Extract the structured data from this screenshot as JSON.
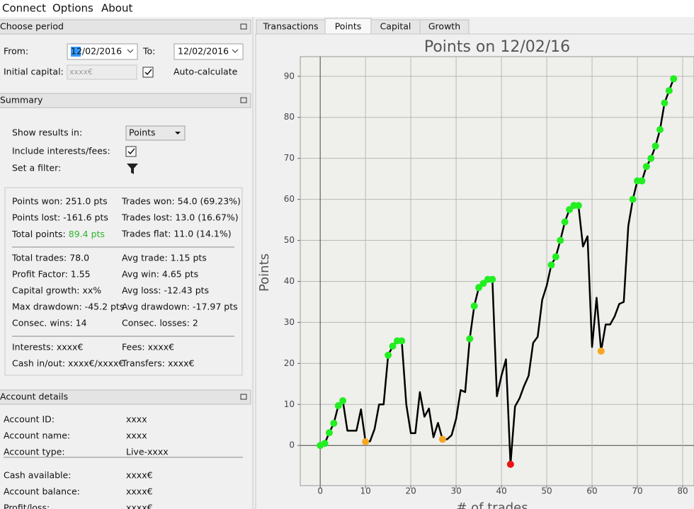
{
  "menu": [
    "Connect",
    "Options",
    "About"
  ],
  "period": {
    "title": "Choose period",
    "from_label": "From:",
    "from": "12/02/2016",
    "to_label": "To:",
    "to": "12/02/2016",
    "capital_label": "Initial capital:",
    "capital": "xxxx€",
    "auto_label": "Auto-calculate"
  },
  "summary": {
    "title": "Summary",
    "show_label": "Show results in:",
    "show_value": "Points",
    "interests_label": "Include interests/fees:",
    "filter_label": "Set a filter:",
    "stats": [
      [
        [
          "Points won: 251.0 pts",
          "Trades won: 54.0 (69.23%)"
        ],
        [
          "Points lost: -161.6 pts",
          "Trades lost: 13.0 (16.67%)"
        ],
        [
          {
            "label": "Total points:",
            "value": "89.4 pts"
          },
          "Trades flat: 11.0 (14.1%)"
        ]
      ],
      [
        [
          "Total trades: 78.0",
          "Avg trade: 1.15 pts"
        ],
        [
          "Profit Factor: 1.55",
          "Avg win: 4.65 pts"
        ],
        [
          "Capital growth: xx%",
          "Avg loss: -12.43 pts"
        ],
        [
          "Max drawdown: -45.2 pts",
          "Avg drawdown: -17.97 pts"
        ],
        [
          "Consec. wins: 14",
          "Consec. losses: 2"
        ]
      ],
      [
        [
          "Interests: xxxx€",
          "Fees: xxxx€"
        ],
        [
          "Cash in/out: xxxx€/xxxx€",
          "Transfers: xxxx€"
        ]
      ]
    ]
  },
  "account": {
    "title": "Account details",
    "groups": [
      [
        [
          "Account ID:",
          "xxxx"
        ],
        [
          "Account name:",
          "xxxx"
        ],
        [
          "Account type:",
          "Live-xxxx"
        ]
      ],
      [
        [
          "Cash available:",
          "xxxx€"
        ],
        [
          "Account balance:",
          "xxxx€"
        ],
        [
          "Profit/loss:",
          "xxxx€"
        ]
      ]
    ]
  },
  "tabs": [
    "Transactions",
    "Points",
    "Capital",
    "Growth"
  ],
  "active_tab": "Points",
  "chart_data": {
    "type": "line",
    "title": "Points on 12/02/16",
    "ylabel": "Points",
    "xlabel": "# of trades",
    "x": [
      0,
      1,
      2,
      3,
      4,
      5,
      6,
      7,
      8,
      9,
      10,
      11,
      12,
      13,
      14,
      15,
      16,
      17,
      18,
      19,
      20,
      21,
      22,
      23,
      24,
      25,
      26,
      27,
      28,
      29,
      30,
      31,
      32,
      33,
      34,
      35,
      36,
      37,
      38,
      39,
      40,
      41,
      42,
      43,
      44,
      45,
      46,
      47,
      48,
      49,
      50,
      51,
      52,
      53,
      54,
      55,
      56,
      57,
      58,
      59,
      60,
      61,
      62,
      63,
      64,
      65,
      66,
      67,
      68,
      69,
      70,
      71,
      72,
      73,
      74,
      75,
      76,
      77,
      78
    ],
    "values": [
      0,
      0.5,
      3.1,
      5.4,
      9.7,
      10.9,
      3.6,
      3.6,
      3.6,
      8.8,
      0.9,
      1,
      4,
      10,
      10,
      22,
      24.2,
      25.5,
      25.5,
      10,
      3,
      3,
      13,
      7,
      9,
      2,
      5.5,
      1.5,
      1.5,
      2.5,
      6.5,
      13.5,
      13,
      26,
      34,
      38.5,
      39.5,
      40.5,
      40.5,
      12,
      17,
      21,
      -4.6,
      9.5,
      11.5,
      14.5,
      17,
      25,
      26.5,
      35.5,
      39,
      44,
      46,
      50,
      54.5,
      57.5,
      58.5,
      58.5,
      48.5,
      51,
      24,
      36,
      23,
      29.5,
      29.5,
      31.5,
      34.5,
      35,
      53.5,
      60,
      64.5,
      64.5,
      68,
      70,
      73,
      77,
      83.5,
      86.5,
      89.4
    ],
    "color": "#000000",
    "marker_colors": [
      "#22ee22",
      "#22ee22",
      "#22ee22",
      "#22ee22",
      "#22ee22",
      "#22ee22",
      null,
      null,
      null,
      null,
      "#f5a623",
      null,
      null,
      null,
      null,
      "#22ee22",
      "#22ee22",
      "#22ee22",
      "#22ee22",
      null,
      null,
      null,
      null,
      null,
      null,
      null,
      null,
      "#f5a623",
      null,
      null,
      null,
      null,
      null,
      "#22ee22",
      "#22ee22",
      "#22ee22",
      "#22ee22",
      "#22ee22",
      "#22ee22",
      null,
      null,
      null,
      "#ee1111",
      null,
      null,
      null,
      null,
      null,
      null,
      null,
      null,
      "#22ee22",
      "#22ee22",
      "#22ee22",
      "#22ee22",
      "#22ee22",
      "#22ee22",
      "#22ee22",
      null,
      null,
      null,
      null,
      "#f5a623",
      null,
      null,
      null,
      null,
      null,
      null,
      "#22ee22",
      "#22ee22",
      "#22ee22",
      "#22ee22",
      "#22ee22",
      "#22ee22",
      "#22ee22",
      "#22ee22",
      "#22ee22",
      "#22ee22"
    ],
    "xlim": [
      -4.4,
      82.5
    ],
    "ylim": [
      -9.8,
      94.8
    ],
    "xticks": [
      0,
      10,
      20,
      30,
      40,
      50,
      60,
      70,
      80
    ],
    "yticks": [
      0,
      10,
      20,
      30,
      40,
      50,
      60,
      70,
      80,
      90
    ],
    "grid": true
  }
}
